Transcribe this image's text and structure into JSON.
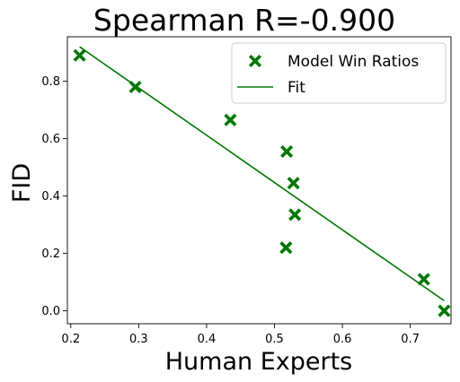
{
  "chart_data": {
    "type": "scatter",
    "title": "Spearman R=-0.900",
    "xlabel": "Human Experts",
    "ylabel": "FID",
    "xlim": [
      0.195,
      0.76
    ],
    "ylim": [
      -0.045,
      0.955
    ],
    "xticks": [
      0.2,
      0.3,
      0.4,
      0.5,
      0.6,
      0.7
    ],
    "yticks": [
      0.0,
      0.2,
      0.4,
      0.6,
      0.8
    ],
    "xtick_labels": [
      "0.2",
      "0.3",
      "0.4",
      "0.5",
      "0.6",
      "0.7"
    ],
    "ytick_labels": [
      "0.0",
      "0.2",
      "0.4",
      "0.6",
      "0.8"
    ],
    "grid": false,
    "legend": "top-right",
    "series": [
      {
        "name": "Model Win Ratios",
        "marker": "X",
        "color": "#007700",
        "x": [
          0.213,
          0.295,
          0.435,
          0.518,
          0.528,
          0.53,
          0.517,
          0.72,
          0.75
        ],
        "y": [
          0.89,
          0.78,
          0.665,
          0.555,
          0.445,
          0.335,
          0.22,
          0.11,
          0.0
        ]
      },
      {
        "name": "Fit",
        "type": "line",
        "color": "#007700",
        "x": [
          0.213,
          0.75
        ],
        "y": [
          0.92,
          0.035
        ]
      }
    ]
  }
}
